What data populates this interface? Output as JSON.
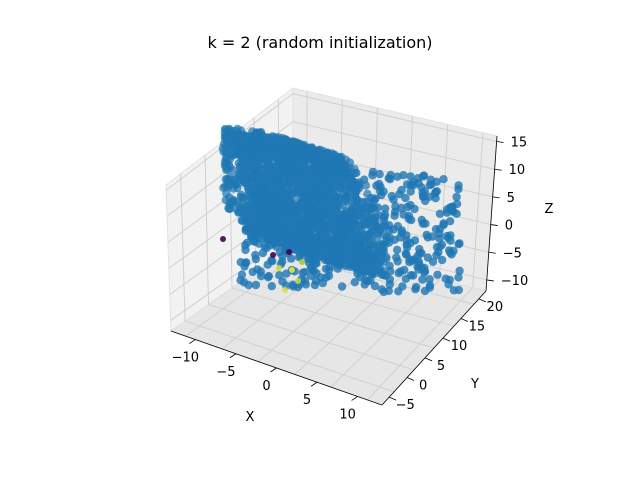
{
  "chart_data": {
    "type": "scatter",
    "projection": "3d",
    "title": "k = 2 (random initialization)",
    "xlabel": "X",
    "ylabel": "Y",
    "zlabel": "Z",
    "xlim": [
      -13,
      13
    ],
    "ylim": [
      -7,
      22
    ],
    "zlim": [
      -12,
      16
    ],
    "x_ticks": [
      -10,
      -5,
      0,
      5,
      10
    ],
    "y_ticks": [
      -5,
      0,
      5,
      10,
      15,
      20
    ],
    "z_ticks": [
      -10,
      -5,
      0,
      5,
      10,
      15
    ],
    "grid": true,
    "legend": "none",
    "colors": {
      "main_cluster": "#1f77b4",
      "inner_yellow": "#e5e541",
      "inner_dark": "#440154",
      "pane_fill": "#f2f2f2",
      "grid": "#d0d0d0"
    },
    "series": [
      {
        "shape": "swiss-roll cylinder",
        "color": "#1f77b4",
        "x_range": [
          -11,
          11
        ],
        "y_range": [
          -4,
          21
        ],
        "z_range": [
          -11,
          14
        ],
        "approx_points": 2000
      },
      {
        "shape": "small cluster near roll end",
        "color": "#440154",
        "center": [
          -9,
          2,
          0
        ]
      }
    ]
  }
}
